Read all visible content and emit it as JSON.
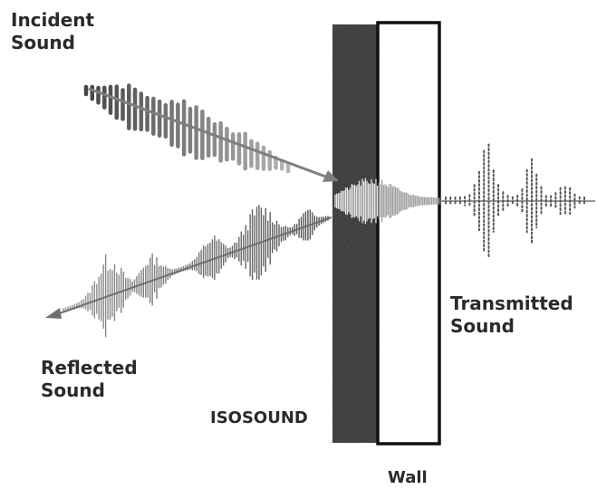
{
  "labels": {
    "incident": [
      "Incident",
      "Sound"
    ],
    "reflected": [
      "Reflected",
      "Sound"
    ],
    "transmitted": [
      "Transmitted",
      "Sound"
    ],
    "isosound": "ISOSOUND",
    "wall": "Wall"
  },
  "colors": {
    "text": "#2a2a2a",
    "isosound_layer": "#2b2b2b",
    "wall_outline": "#111111",
    "incident_wave": "#8c8c8c",
    "reflected_wave": "#7a7a7a",
    "transmitted_wave": "#555555",
    "arrow": "#808080"
  }
}
